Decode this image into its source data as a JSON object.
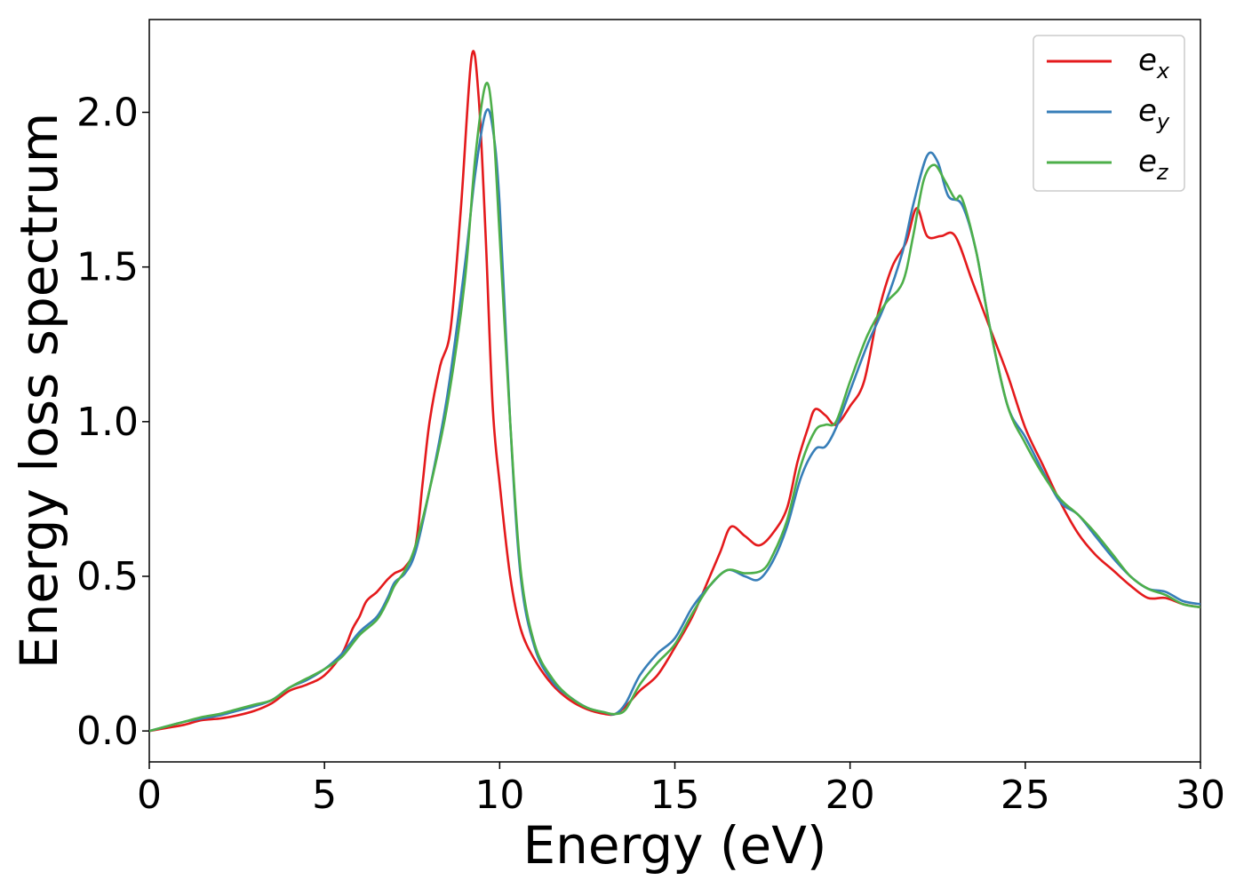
{
  "chart_data": {
    "type": "line",
    "xlabel": "Energy (eV)",
    "ylabel": "Energy loss spectrum",
    "xlim": [
      0,
      30
    ],
    "ylim": [
      -0.1,
      2.3
    ],
    "x_ticks": [
      0,
      5,
      10,
      15,
      20,
      25,
      30
    ],
    "x_tick_labels": [
      "0",
      "5",
      "10",
      "15",
      "20",
      "25",
      "30"
    ],
    "y_ticks": [
      0.0,
      0.5,
      1.0,
      1.5,
      2.0
    ],
    "y_tick_labels": [
      "0.0",
      "0.5",
      "1.0",
      "1.5",
      "2.0"
    ],
    "grid": false,
    "legend_position": "top-right",
    "series": [
      {
        "name": "e_x",
        "label_main": "e",
        "label_sub": "x",
        "color": "#e41a1c",
        "points": [
          [
            0,
            0.0
          ],
          [
            0.5,
            0.01
          ],
          [
            1.0,
            0.02
          ],
          [
            1.5,
            0.035
          ],
          [
            2.0,
            0.04
          ],
          [
            2.5,
            0.05
          ],
          [
            3.0,
            0.065
          ],
          [
            3.5,
            0.09
          ],
          [
            4.0,
            0.13
          ],
          [
            4.5,
            0.15
          ],
          [
            5.0,
            0.18
          ],
          [
            5.5,
            0.25
          ],
          [
            5.8,
            0.33
          ],
          [
            6.0,
            0.37
          ],
          [
            6.2,
            0.42
          ],
          [
            6.5,
            0.45
          ],
          [
            6.8,
            0.49
          ],
          [
            7.0,
            0.51
          ],
          [
            7.3,
            0.53
          ],
          [
            7.6,
            0.6
          ],
          [
            7.8,
            0.8
          ],
          [
            8.0,
            1.0
          ],
          [
            8.3,
            1.18
          ],
          [
            8.6,
            1.3
          ],
          [
            8.9,
            1.7
          ],
          [
            9.2,
            2.18
          ],
          [
            9.4,
            2.05
          ],
          [
            9.6,
            1.6
          ],
          [
            9.8,
            1.05
          ],
          [
            10.0,
            0.8
          ],
          [
            10.3,
            0.5
          ],
          [
            10.6,
            0.33
          ],
          [
            11.0,
            0.23
          ],
          [
            11.5,
            0.15
          ],
          [
            12.0,
            0.1
          ],
          [
            12.5,
            0.07
          ],
          [
            13.0,
            0.055
          ],
          [
            13.3,
            0.055
          ],
          [
            13.6,
            0.08
          ],
          [
            14.0,
            0.13
          ],
          [
            14.5,
            0.18
          ],
          [
            15.0,
            0.27
          ],
          [
            15.5,
            0.37
          ],
          [
            16.0,
            0.5
          ],
          [
            16.3,
            0.58
          ],
          [
            16.6,
            0.66
          ],
          [
            17.0,
            0.63
          ],
          [
            17.4,
            0.6
          ],
          [
            17.8,
            0.64
          ],
          [
            18.2,
            0.72
          ],
          [
            18.5,
            0.87
          ],
          [
            18.8,
            0.98
          ],
          [
            19.0,
            1.04
          ],
          [
            19.3,
            1.02
          ],
          [
            19.6,
            0.99
          ],
          [
            20.0,
            1.05
          ],
          [
            20.4,
            1.13
          ],
          [
            20.8,
            1.35
          ],
          [
            21.2,
            1.5
          ],
          [
            21.6,
            1.58
          ],
          [
            21.9,
            1.69
          ],
          [
            22.2,
            1.6
          ],
          [
            22.6,
            1.6
          ],
          [
            23.0,
            1.6
          ],
          [
            23.5,
            1.45
          ],
          [
            24.0,
            1.3
          ],
          [
            24.5,
            1.15
          ],
          [
            25.0,
            0.98
          ],
          [
            25.5,
            0.86
          ],
          [
            26.0,
            0.74
          ],
          [
            26.5,
            0.64
          ],
          [
            27.0,
            0.57
          ],
          [
            27.5,
            0.52
          ],
          [
            28.0,
            0.47
          ],
          [
            28.5,
            0.43
          ],
          [
            29.0,
            0.43
          ],
          [
            29.5,
            0.41
          ],
          [
            30.0,
            0.4
          ]
        ]
      },
      {
        "name": "e_y",
        "label_main": "e",
        "label_sub": "y",
        "color": "#377eb8",
        "points": [
          [
            0,
            0.0
          ],
          [
            0.5,
            0.015
          ],
          [
            1.0,
            0.03
          ],
          [
            1.5,
            0.04
          ],
          [
            2.0,
            0.05
          ],
          [
            2.5,
            0.065
          ],
          [
            3.0,
            0.08
          ],
          [
            3.5,
            0.1
          ],
          [
            4.0,
            0.14
          ],
          [
            4.5,
            0.165
          ],
          [
            5.0,
            0.2
          ],
          [
            5.5,
            0.25
          ],
          [
            6.0,
            0.32
          ],
          [
            6.5,
            0.37
          ],
          [
            6.8,
            0.43
          ],
          [
            7.0,
            0.48
          ],
          [
            7.3,
            0.51
          ],
          [
            7.6,
            0.58
          ],
          [
            8.0,
            0.78
          ],
          [
            8.5,
            1.08
          ],
          [
            9.0,
            1.5
          ],
          [
            9.3,
            1.8
          ],
          [
            9.6,
            2.0
          ],
          [
            9.8,
            1.95
          ],
          [
            10.0,
            1.7
          ],
          [
            10.3,
            1.0
          ],
          [
            10.6,
            0.5
          ],
          [
            11.0,
            0.27
          ],
          [
            11.5,
            0.16
          ],
          [
            12.0,
            0.11
          ],
          [
            12.5,
            0.075
          ],
          [
            13.0,
            0.06
          ],
          [
            13.3,
            0.055
          ],
          [
            13.6,
            0.09
          ],
          [
            14.0,
            0.18
          ],
          [
            14.5,
            0.25
          ],
          [
            15.0,
            0.3
          ],
          [
            15.5,
            0.4
          ],
          [
            16.0,
            0.47
          ],
          [
            16.5,
            0.52
          ],
          [
            17.0,
            0.5
          ],
          [
            17.4,
            0.49
          ],
          [
            17.8,
            0.55
          ],
          [
            18.2,
            0.66
          ],
          [
            18.6,
            0.82
          ],
          [
            19.0,
            0.91
          ],
          [
            19.3,
            0.92
          ],
          [
            19.6,
            0.98
          ],
          [
            20.0,
            1.1
          ],
          [
            20.5,
            1.25
          ],
          [
            21.0,
            1.38
          ],
          [
            21.5,
            1.55
          ],
          [
            21.8,
            1.7
          ],
          [
            22.2,
            1.86
          ],
          [
            22.5,
            1.84
          ],
          [
            22.8,
            1.73
          ],
          [
            23.2,
            1.7
          ],
          [
            23.6,
            1.55
          ],
          [
            24.0,
            1.3
          ],
          [
            24.5,
            1.05
          ],
          [
            25.0,
            0.95
          ],
          [
            25.5,
            0.84
          ],
          [
            26.0,
            0.74
          ],
          [
            26.5,
            0.7
          ],
          [
            27.0,
            0.63
          ],
          [
            27.5,
            0.56
          ],
          [
            28.0,
            0.5
          ],
          [
            28.5,
            0.46
          ],
          [
            29.0,
            0.45
          ],
          [
            29.5,
            0.42
          ],
          [
            30.0,
            0.41
          ]
        ]
      },
      {
        "name": "e_z",
        "label_main": "e",
        "label_sub": "z",
        "color": "#4daf4a",
        "points": [
          [
            0,
            0.0
          ],
          [
            0.5,
            0.015
          ],
          [
            1.0,
            0.03
          ],
          [
            1.5,
            0.045
          ],
          [
            2.0,
            0.055
          ],
          [
            2.5,
            0.07
          ],
          [
            3.0,
            0.085
          ],
          [
            3.5,
            0.1
          ],
          [
            4.0,
            0.14
          ],
          [
            4.5,
            0.17
          ],
          [
            5.0,
            0.2
          ],
          [
            5.5,
            0.24
          ],
          [
            6.0,
            0.31
          ],
          [
            6.5,
            0.36
          ],
          [
            6.8,
            0.42
          ],
          [
            7.0,
            0.47
          ],
          [
            7.3,
            0.52
          ],
          [
            7.6,
            0.6
          ],
          [
            8.0,
            0.78
          ],
          [
            8.5,
            1.05
          ],
          [
            9.0,
            1.45
          ],
          [
            9.3,
            1.85
          ],
          [
            9.6,
            2.09
          ],
          [
            9.8,
            1.98
          ],
          [
            10.0,
            1.6
          ],
          [
            10.3,
            1.0
          ],
          [
            10.6,
            0.52
          ],
          [
            11.0,
            0.28
          ],
          [
            11.5,
            0.17
          ],
          [
            12.0,
            0.11
          ],
          [
            12.5,
            0.075
          ],
          [
            13.0,
            0.06
          ],
          [
            13.3,
            0.055
          ],
          [
            13.6,
            0.07
          ],
          [
            14.0,
            0.15
          ],
          [
            14.5,
            0.22
          ],
          [
            15.0,
            0.28
          ],
          [
            15.5,
            0.38
          ],
          [
            16.0,
            0.47
          ],
          [
            16.5,
            0.52
          ],
          [
            17.0,
            0.51
          ],
          [
            17.5,
            0.52
          ],
          [
            17.8,
            0.57
          ],
          [
            18.2,
            0.68
          ],
          [
            18.6,
            0.86
          ],
          [
            19.0,
            0.97
          ],
          [
            19.3,
            0.99
          ],
          [
            19.6,
            1.0
          ],
          [
            20.0,
            1.13
          ],
          [
            20.5,
            1.28
          ],
          [
            21.0,
            1.38
          ],
          [
            21.5,
            1.45
          ],
          [
            21.8,
            1.6
          ],
          [
            22.1,
            1.78
          ],
          [
            22.4,
            1.83
          ],
          [
            22.7,
            1.78
          ],
          [
            23.0,
            1.72
          ],
          [
            23.2,
            1.72
          ],
          [
            23.6,
            1.55
          ],
          [
            24.0,
            1.3
          ],
          [
            24.5,
            1.05
          ],
          [
            25.0,
            0.93
          ],
          [
            25.5,
            0.83
          ],
          [
            26.0,
            0.75
          ],
          [
            26.5,
            0.7
          ],
          [
            27.0,
            0.64
          ],
          [
            27.5,
            0.57
          ],
          [
            28.0,
            0.5
          ],
          [
            28.5,
            0.46
          ],
          [
            29.0,
            0.44
          ],
          [
            29.5,
            0.41
          ],
          [
            30.0,
            0.4
          ]
        ]
      }
    ]
  }
}
